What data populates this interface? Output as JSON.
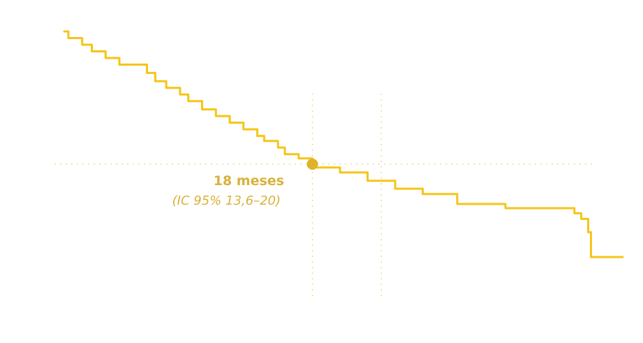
{
  "chart_data": {
    "type": "line",
    "title": "",
    "xlabel": "",
    "ylabel": "",
    "grid": false,
    "colors": {
      "line": "#f5c518",
      "marker": "#e0b22a",
      "annotation": "#d9b23a",
      "guide": "#e8df8c"
    },
    "series": [
      {
        "steps": [
          [
            0,
            1.0
          ],
          [
            0.3,
            0.96
          ],
          [
            1.3,
            0.92
          ],
          [
            2.0,
            0.88
          ],
          [
            3.0,
            0.84
          ],
          [
            4.0,
            0.8
          ],
          [
            6.0,
            0.75
          ],
          [
            6.6,
            0.7
          ],
          [
            7.4,
            0.66
          ],
          [
            8.4,
            0.62
          ],
          [
            9.0,
            0.58
          ],
          [
            10.0,
            0.53
          ],
          [
            11.0,
            0.49
          ],
          [
            12.0,
            0.45
          ],
          [
            13.0,
            0.41
          ],
          [
            14.0,
            0.37
          ],
          [
            14.5,
            0.34
          ],
          [
            15.5,
            0.3
          ],
          [
            16.0,
            0.26
          ],
          [
            17.0,
            0.235
          ],
          [
            18.0,
            0.18
          ],
          [
            20.0,
            0.15
          ],
          [
            22.0,
            0.1
          ],
          [
            24.0,
            0.052
          ],
          [
            26.0,
            0.02
          ],
          [
            28.5,
            -0.04
          ],
          [
            32.0,
            -0.065
          ],
          [
            37.0,
            -0.096
          ],
          [
            37.5,
            -0.13
          ],
          [
            38.0,
            -0.21
          ],
          [
            38.2,
            -0.36
          ],
          [
            40.5,
            -0.36
          ]
        ]
      }
    ],
    "guides": {
      "horizontal_y": 0.2,
      "vertical_x": [
        18,
        23
      ]
    },
    "median": {
      "x": 18,
      "y": 0.2,
      "label": "18 meses",
      "ci_label": "(IC 95% 13,6–20)"
    }
  }
}
